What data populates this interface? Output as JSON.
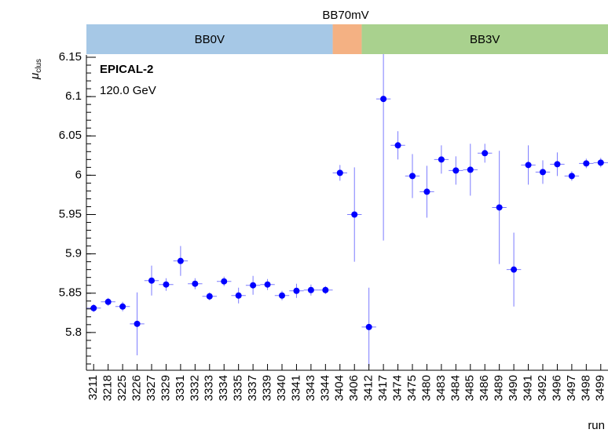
{
  "chart_data": {
    "type": "errorbar",
    "title": "BB70mV",
    "ylabel": {
      "symbol": "μ",
      "subscript": "clus"
    },
    "xlabel": "run",
    "annotations": [
      "EPICAL-2",
      "120.0 GeV"
    ],
    "bands": [
      {
        "label": "BB0V",
        "color": "#a6c8e6",
        "start": "3211",
        "end": "3344"
      },
      {
        "label": null,
        "color": "#f4b183",
        "start": "3404",
        "end": "3406"
      },
      {
        "label": "BB3V",
        "color": "#a9d18e",
        "start": "3412",
        "end": "3499"
      }
    ],
    "categories": [
      "3211",
      "3218",
      "3225",
      "3226",
      "3327",
      "3329",
      "3331",
      "3332",
      "3333",
      "3334",
      "3335",
      "3337",
      "3339",
      "3340",
      "3341",
      "3343",
      "3344",
      "3404",
      "3406",
      "3412",
      "3417",
      "3474",
      "3475",
      "3480",
      "3483",
      "3484",
      "3485",
      "3486",
      "3489",
      "3490",
      "3491",
      "3492",
      "3496",
      "3497",
      "3498",
      "3499"
    ],
    "series": [
      {
        "name": null,
        "color": "#0000ff",
        "error_color": "#7b7bff",
        "values": [
          5.831,
          5.839,
          5.833,
          5.811,
          5.866,
          5.861,
          5.891,
          5.862,
          5.846,
          5.865,
          5.847,
          5.86,
          5.861,
          5.847,
          5.853,
          5.854,
          5.854,
          6.003,
          5.95,
          5.807,
          6.097,
          6.038,
          5.999,
          5.979,
          6.02,
          6.006,
          6.007,
          6.028,
          5.959,
          5.88,
          6.013,
          6.004,
          6.014,
          5.999,
          6.015,
          6.016
        ],
        "errors": [
          0.005,
          0.005,
          0.006,
          0.04,
          0.019,
          0.008,
          0.019,
          0.007,
          0.005,
          0.006,
          0.01,
          0.012,
          0.007,
          0.006,
          0.009,
          0.007,
          0.005,
          0.01,
          0.06,
          0.05,
          0.18,
          0.018,
          0.028,
          0.033,
          0.018,
          0.018,
          0.033,
          0.012,
          0.072,
          0.047,
          0.025,
          0.015,
          0.015,
          0.006,
          0.006,
          0.006
        ]
      }
    ],
    "ylim": [
      5.752,
      6.153
    ],
    "yticks": [
      5.8,
      5.85,
      5.9,
      5.95,
      6,
      6.05,
      6.1,
      6.15
    ]
  }
}
